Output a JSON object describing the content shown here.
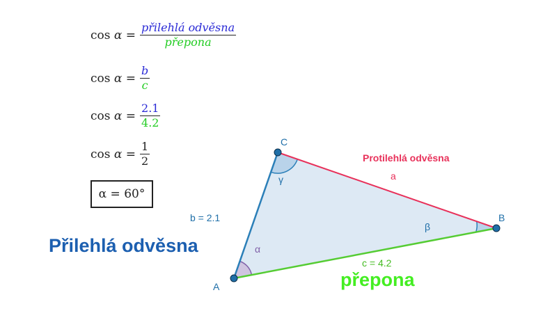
{
  "formulas": {
    "row1": {
      "lhs_fn": "cos",
      "lhs_var": "α",
      "eq": "=",
      "num": "přilehlá odvěsna",
      "den": "přepona"
    },
    "row2": {
      "lhs_fn": "cos",
      "lhs_var": "α",
      "eq": "=",
      "num": "b",
      "den": "c"
    },
    "row3": {
      "lhs_fn": "cos",
      "lhs_var": "α",
      "eq": "=",
      "num": "2.1",
      "den": "4.2"
    },
    "row4": {
      "lhs_fn": "cos",
      "lhs_var": "α",
      "eq": "=",
      "num": "1",
      "den": "2"
    },
    "result": "α = 60°"
  },
  "triangle": {
    "vertices": {
      "A": "A",
      "B": "B",
      "C": "C"
    },
    "angles": {
      "alpha": "α",
      "beta": "β",
      "gamma": "γ"
    },
    "sides": {
      "a_name": "a",
      "b_value": "b = 2.1",
      "c_value": "c = 4.2"
    },
    "labels": {
      "opposite": "Protilehlá odvěsna",
      "adjacent": "Přilehlá odvěsna",
      "hypotenuse": "přepona"
    }
  },
  "colors": {
    "side_a": "#e8315a",
    "side_b": "#2b7fb8",
    "side_c": "#55cc33",
    "fill": "#dde9f4",
    "point": "#1f6fa8",
    "adjacent_label": "#1c5fb0",
    "hypotenuse_label": "#44ee22",
    "alpha_arc": "#8060a8",
    "angle_label": "#1f6fa8"
  }
}
